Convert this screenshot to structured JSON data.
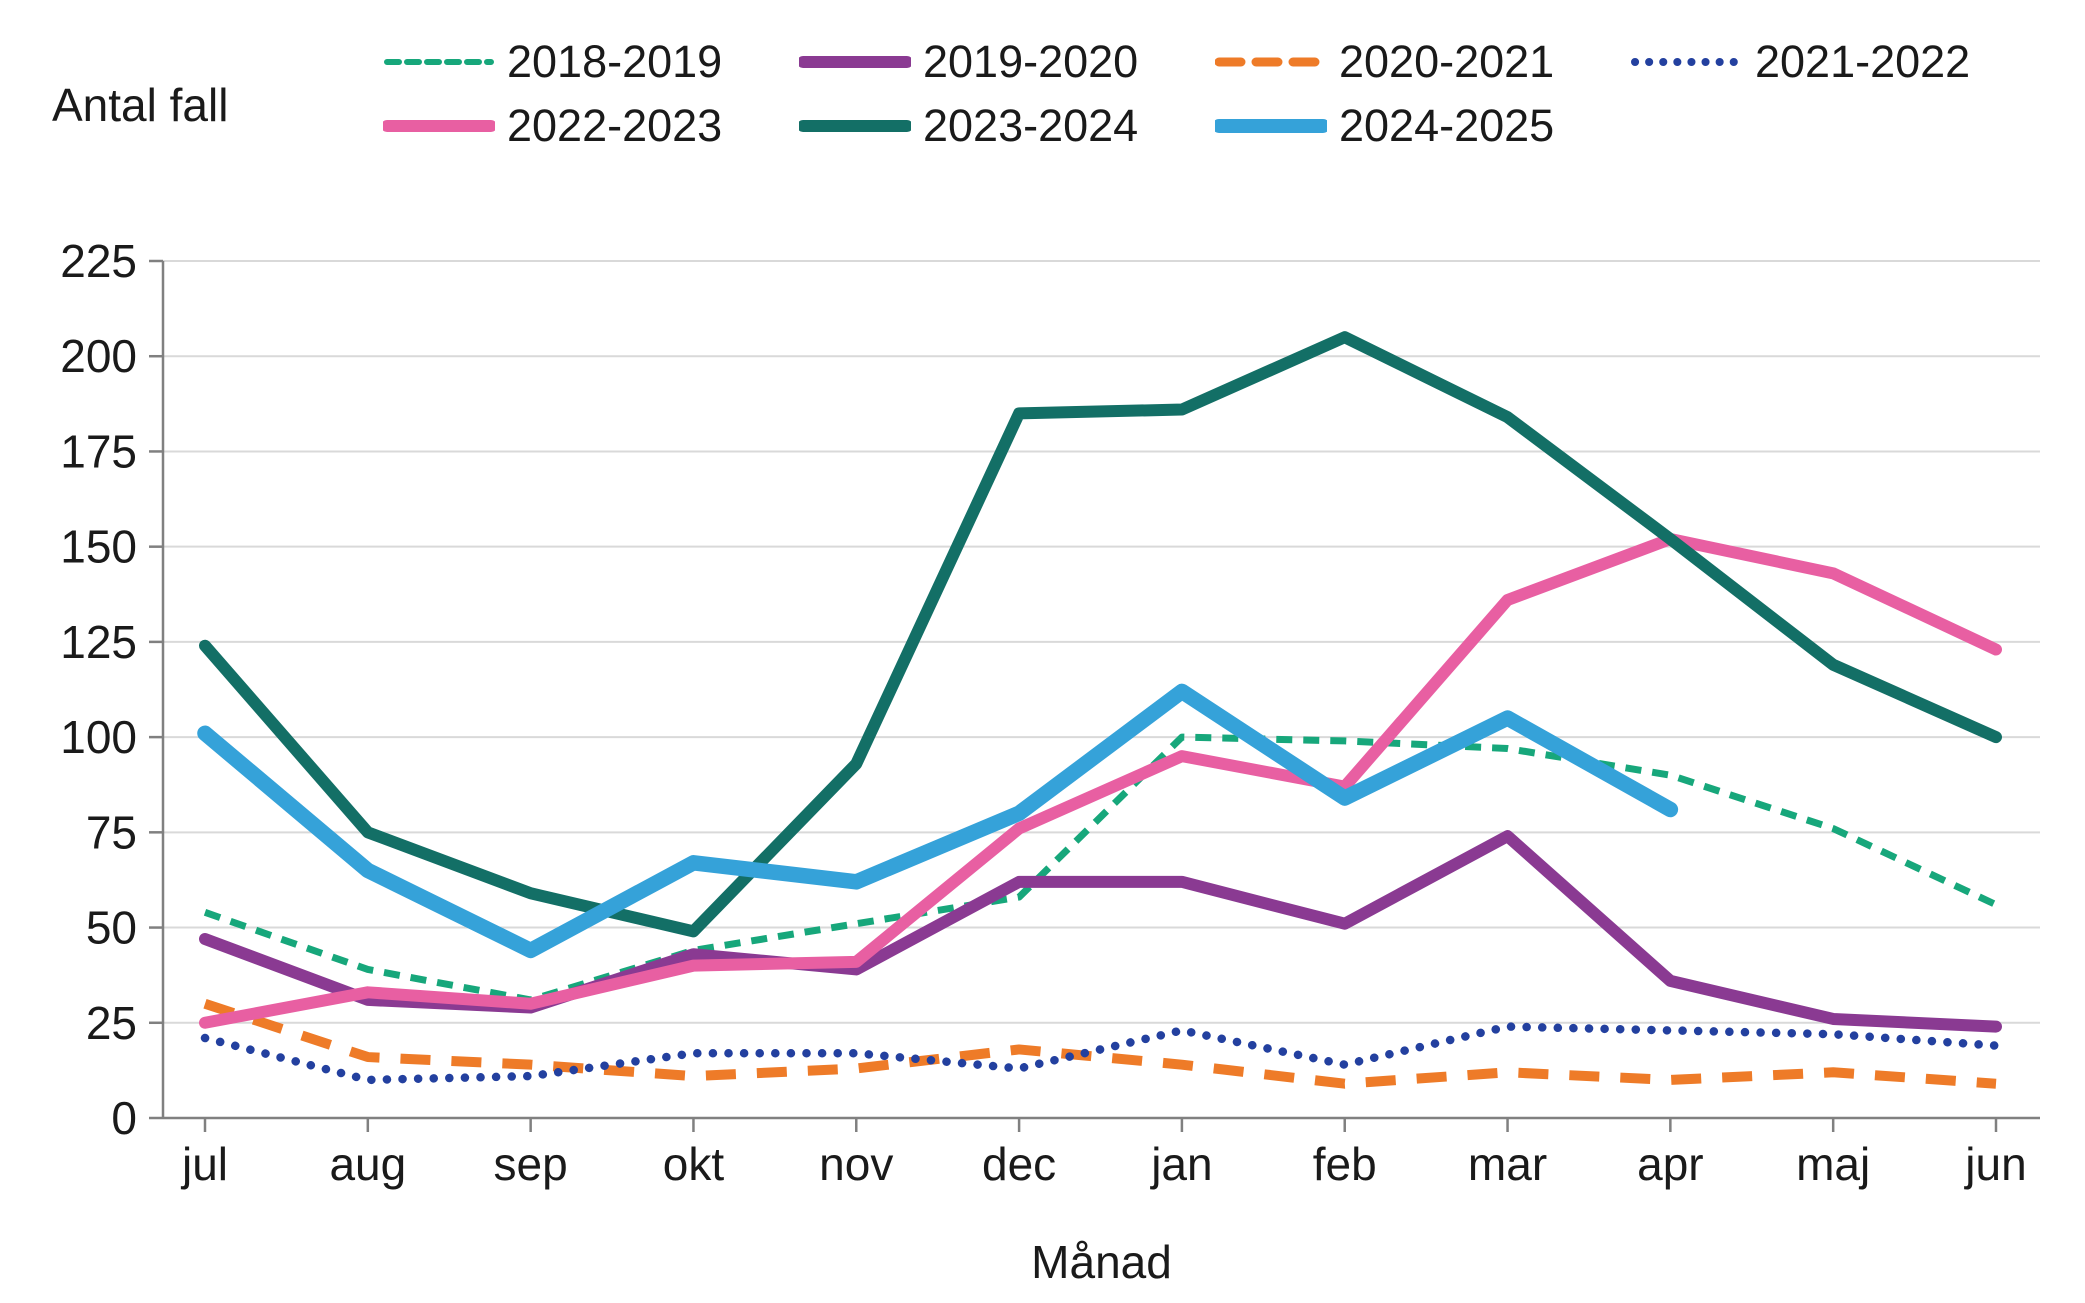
{
  "chart_title": "Antal fall",
  "x_axis_title": "Månad",
  "axis_colors": {
    "gridline": "#d9d9d9",
    "axis_line": "#808080",
    "text": "#1a1a1a"
  },
  "chart_data": {
    "type": "line",
    "title": "Antal fall",
    "xlabel": "Månad",
    "ylabel": "Antal fall",
    "categories": [
      "jul",
      "aug",
      "sep",
      "okt",
      "nov",
      "dec",
      "jan",
      "feb",
      "mar",
      "apr",
      "maj",
      "jun"
    ],
    "ylim": [
      0,
      225
    ],
    "ytick_step": 25,
    "grid": true,
    "legend_position": "top",
    "legend_rows": [
      4,
      3
    ],
    "series": [
      {
        "name": "2018-2019",
        "color": "#17a77b",
        "style": "dash",
        "values": [
          54,
          39,
          31,
          44,
          51,
          58,
          100,
          99,
          97,
          90,
          76,
          56
        ]
      },
      {
        "name": "2019-2020",
        "color": "#8a3a92",
        "style": "solid",
        "values": [
          47,
          31,
          29,
          43,
          39,
          62,
          62,
          51,
          74,
          36,
          26,
          24
        ]
      },
      {
        "name": "2020-2021",
        "color": "#ee7b28",
        "style": "longdash",
        "values": [
          30,
          16,
          14,
          11,
          13,
          18,
          14,
          9,
          12,
          10,
          12,
          9
        ]
      },
      {
        "name": "2021-2022",
        "color": "#23409f",
        "style": "dot",
        "values": [
          21,
          10,
          11,
          17,
          17,
          13,
          23,
          14,
          24,
          23,
          22,
          19
        ]
      },
      {
        "name": "2022-2023",
        "color": "#e85fa2",
        "style": "solid",
        "values": [
          25,
          33,
          30,
          40,
          41,
          76,
          95,
          87,
          136,
          152,
          143,
          123
        ]
      },
      {
        "name": "2023-2024",
        "color": "#136f66",
        "style": "solid",
        "values": [
          124,
          75,
          59,
          49,
          93,
          185,
          186,
          205,
          184,
          152,
          119,
          100
        ]
      },
      {
        "name": "2024-2025",
        "color": "#35a2d9",
        "style": "solid-thick",
        "values": [
          101,
          65,
          44,
          67,
          62,
          80,
          112,
          84,
          105,
          81,
          null,
          null
        ]
      }
    ]
  }
}
